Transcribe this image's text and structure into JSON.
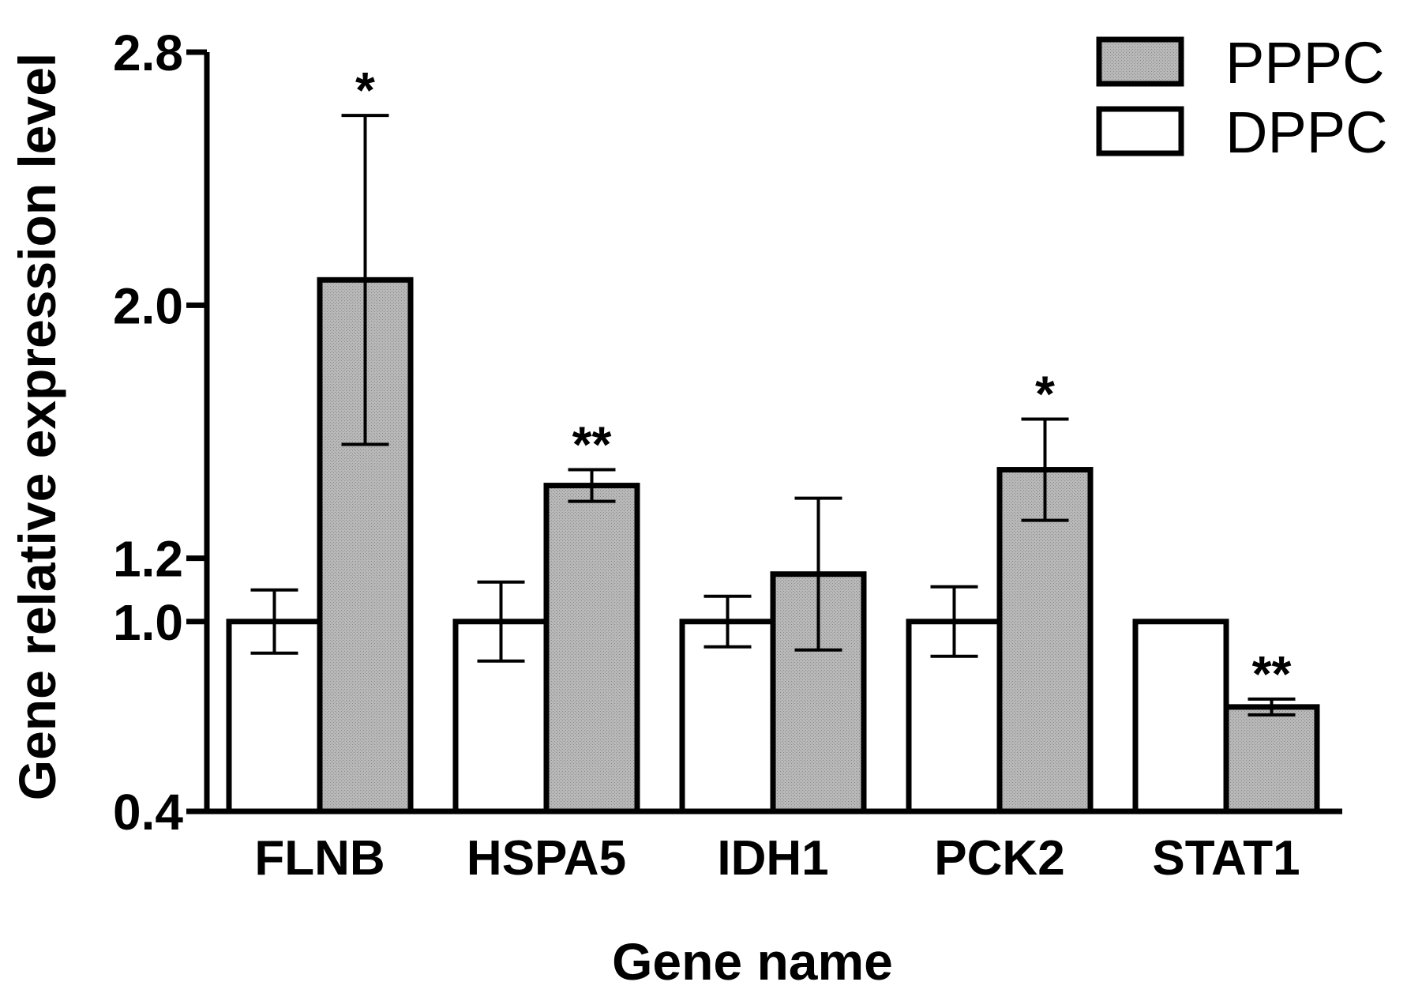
{
  "chart_data": {
    "type": "bar",
    "title": "",
    "xlabel": "Gene name",
    "ylabel": "Gene relative expression level",
    "ylim": [
      0.4,
      2.8
    ],
    "yticks": [
      0.4,
      1.0,
      1.2,
      2.0,
      2.8
    ],
    "ytick_labels": [
      "0.4",
      "1.0",
      "1.2",
      "2.0",
      "2.8"
    ],
    "categories": [
      "FLNB",
      "HSPA5",
      "IDH1",
      "PCK2",
      "STAT1"
    ],
    "series": [
      {
        "name": "DPPC",
        "color": "#ffffff",
        "values": [
          1.0,
          1.0,
          1.0,
          1.0,
          1.0
        ],
        "errors": [
          0.1,
          0.125,
          0.08,
          0.11,
          0.0
        ],
        "significance": [
          "",
          "",
          "",
          "",
          ""
        ]
      },
      {
        "name": "PPPC",
        "color": "#b4b4b4",
        "values": [
          2.08,
          1.43,
          1.15,
          1.48,
          0.73
        ],
        "errors": [
          0.52,
          0.05,
          0.24,
          0.16,
          0.025
        ],
        "significance": [
          "*",
          "**",
          "",
          "*",
          "**"
        ]
      }
    ],
    "legend": {
      "placement": "top-right",
      "order": [
        "PPPC",
        "DPPC"
      ]
    },
    "grid": false
  }
}
